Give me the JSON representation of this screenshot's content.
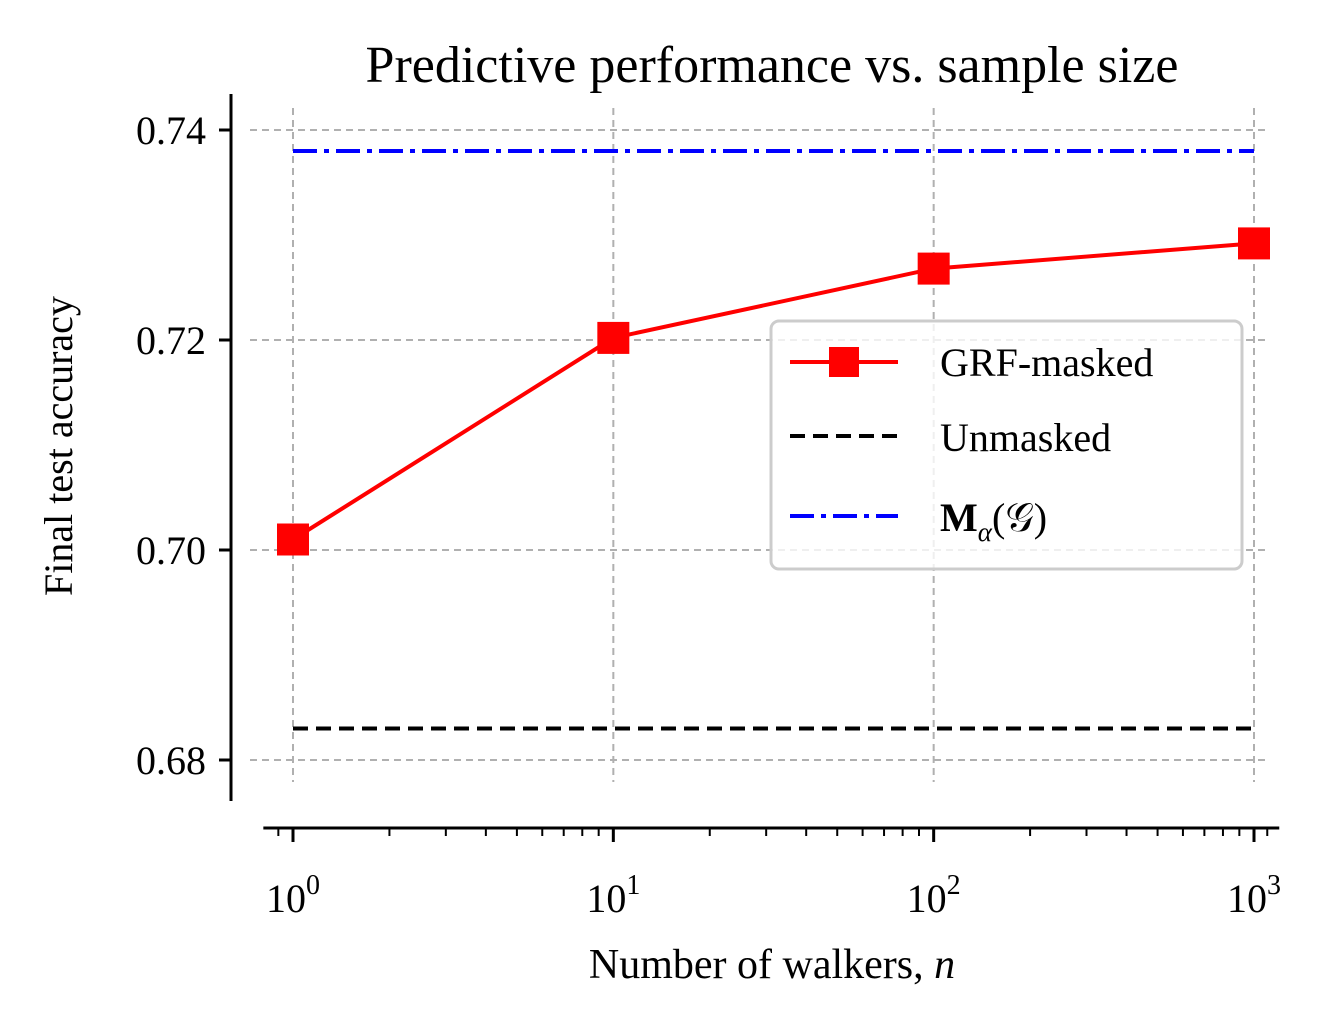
{
  "chart_data": {
    "type": "line",
    "title": "Predictive performance vs. sample size",
    "xlabel_text": "Number of walkers, ",
    "xlabel_var": "n",
    "ylabel": "Final test accuracy",
    "xscale": "log",
    "xlim": [
      0.9,
      1100
    ],
    "ylim": [
      0.678,
      0.742
    ],
    "grid": true,
    "legend_position": "center-right",
    "x_ticks": [
      {
        "value": 1,
        "base": "10",
        "exp": "0"
      },
      {
        "value": 10,
        "base": "10",
        "exp": "1"
      },
      {
        "value": 100,
        "base": "10",
        "exp": "2"
      },
      {
        "value": 1000,
        "base": "10",
        "exp": "3"
      }
    ],
    "y_ticks": [
      {
        "value": 0.68,
        "label": "0.68"
      },
      {
        "value": 0.7,
        "label": "0.70"
      },
      {
        "value": 0.72,
        "label": "0.72"
      },
      {
        "value": 0.74,
        "label": "0.74"
      }
    ],
    "series": [
      {
        "name": "GRF-masked",
        "color": "#ff0000",
        "style": "solid",
        "marker": "square",
        "x": [
          1,
          10,
          100,
          1000
        ],
        "y": [
          0.701,
          0.7202,
          0.7268,
          0.7292
        ]
      },
      {
        "name": "Unmasked",
        "color": "#000000",
        "style": "dashed",
        "marker": "none",
        "x": [
          1,
          1000
        ],
        "y": [
          0.683,
          0.683
        ]
      },
      {
        "name_parts": {
          "main": "M",
          "sub": "α",
          "arg": "(𝒢)"
        },
        "color": "#0000ff",
        "style": "dashdot",
        "marker": "none",
        "x": [
          1,
          1000
        ],
        "y": [
          0.738,
          0.738
        ]
      }
    ]
  }
}
